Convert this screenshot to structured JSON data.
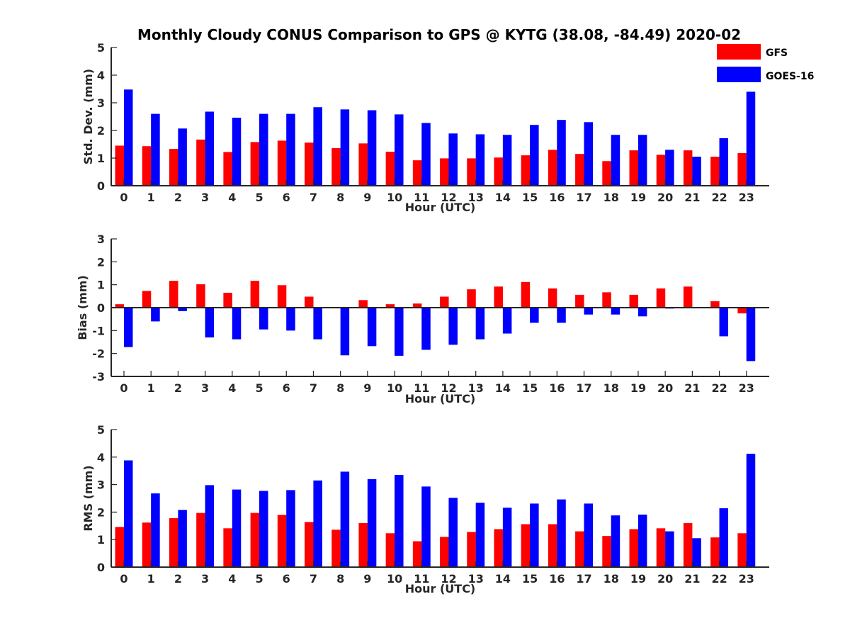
{
  "title": "Monthly Cloudy CONUS Comparison to GPS @ KYTG (38.08, -84.49) 2020-02",
  "colors": {
    "GFS": "#ff0000",
    "GOES-16": "#0000ff"
  },
  "legend": [
    {
      "name": "GFS",
      "color": "#ff0000"
    },
    {
      "name": "GOES-16",
      "color": "#0000ff"
    }
  ],
  "chart_data": [
    {
      "type": "bar",
      "ylabel": "Std. Dev. (mm)",
      "xlabel": "Hour (UTC)",
      "categories": [
        0,
        1,
        2,
        3,
        4,
        5,
        6,
        7,
        8,
        9,
        10,
        11,
        12,
        13,
        14,
        15,
        16,
        17,
        18,
        19,
        20,
        21,
        22,
        23
      ],
      "ylim": [
        0,
        5
      ],
      "yticks": [
        0,
        1,
        2,
        3,
        4,
        5
      ],
      "series": [
        {
          "name": "GFS",
          "values": [
            1.45,
            1.43,
            1.33,
            1.67,
            1.22,
            1.58,
            1.63,
            1.56,
            1.36,
            1.53,
            1.23,
            0.92,
            0.99,
            0.99,
            1.02,
            1.1,
            1.3,
            1.15,
            0.89,
            1.28,
            1.12,
            1.28,
            1.05,
            1.18
          ]
        },
        {
          "name": "GOES-16",
          "values": [
            3.48,
            2.6,
            2.07,
            2.68,
            2.46,
            2.6,
            2.6,
            2.84,
            2.76,
            2.73,
            2.58,
            2.27,
            1.89,
            1.86,
            1.84,
            2.2,
            2.38,
            2.3,
            1.84,
            1.84,
            1.3,
            1.05,
            1.72,
            3.4
          ]
        }
      ]
    },
    {
      "type": "bar",
      "ylabel": "Bias (mm)",
      "xlabel": "Hour (UTC)",
      "categories": [
        0,
        1,
        2,
        3,
        4,
        5,
        6,
        7,
        8,
        9,
        10,
        11,
        12,
        13,
        14,
        15,
        16,
        17,
        18,
        19,
        20,
        21,
        22,
        23
      ],
      "ylim": [
        -3,
        3
      ],
      "yticks": [
        -3,
        -2,
        -1,
        0,
        1,
        2,
        3
      ],
      "zero_line": true,
      "series": [
        {
          "name": "GFS",
          "values": [
            0.15,
            0.73,
            1.17,
            1.02,
            0.65,
            1.17,
            0.98,
            0.48,
            -0.03,
            0.33,
            0.15,
            0.18,
            0.48,
            0.8,
            0.92,
            1.12,
            0.84,
            0.56,
            0.67,
            0.56,
            0.84,
            0.92,
            0.28,
            -0.25
          ]
        },
        {
          "name": "GOES-16",
          "values": [
            -1.72,
            -0.6,
            -0.15,
            -1.3,
            -1.38,
            -0.95,
            -1.0,
            -1.38,
            -2.08,
            -1.68,
            -2.1,
            -1.84,
            -1.62,
            -1.38,
            -1.13,
            -0.66,
            -0.66,
            -0.3,
            -0.3,
            -0.38,
            -0.04,
            0.0,
            -1.25,
            -2.33
          ]
        }
      ]
    },
    {
      "type": "bar",
      "ylabel": "RMS (mm)",
      "xlabel": "Hour (UTC)",
      "categories": [
        0,
        1,
        2,
        3,
        4,
        5,
        6,
        7,
        8,
        9,
        10,
        11,
        12,
        13,
        14,
        15,
        16,
        17,
        18,
        19,
        20,
        21,
        22,
        23
      ],
      "ylim": [
        0,
        5
      ],
      "yticks": [
        0,
        1,
        2,
        3,
        4,
        5
      ],
      "series": [
        {
          "name": "GFS",
          "values": [
            1.46,
            1.62,
            1.78,
            1.97,
            1.41,
            1.97,
            1.9,
            1.64,
            1.36,
            1.6,
            1.23,
            0.94,
            1.1,
            1.28,
            1.38,
            1.56,
            1.56,
            1.3,
            1.13,
            1.38,
            1.41,
            1.6,
            1.08,
            1.23
          ]
        },
        {
          "name": "GOES-16",
          "values": [
            3.88,
            2.68,
            2.08,
            2.98,
            2.82,
            2.77,
            2.8,
            3.15,
            3.47,
            3.2,
            3.35,
            2.93,
            2.52,
            2.34,
            2.16,
            2.31,
            2.46,
            2.31,
            1.88,
            1.91,
            1.3,
            1.05,
            2.14,
            4.12
          ]
        }
      ]
    }
  ]
}
